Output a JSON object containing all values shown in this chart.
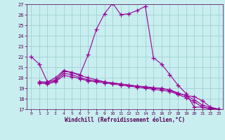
{
  "xlabel": "Windchill (Refroidissement éolien,°C)",
  "bg_color": "#c8eef0",
  "line_color": "#990099",
  "grid_color": "#99cccc",
  "xlim": [
    -0.5,
    23.5
  ],
  "ylim": [
    17,
    27
  ],
  "yticks": [
    17,
    18,
    19,
    20,
    21,
    22,
    23,
    24,
    25,
    26,
    27
  ],
  "xticks": [
    0,
    1,
    2,
    3,
    4,
    5,
    6,
    7,
    8,
    9,
    10,
    11,
    12,
    13,
    14,
    15,
    16,
    17,
    18,
    19,
    20,
    21,
    22,
    23
  ],
  "line1_x": [
    0,
    1,
    2,
    3,
    4,
    5,
    6,
    7,
    8,
    9,
    10,
    11,
    12,
    13,
    14,
    15,
    16,
    17,
    18,
    19,
    20,
    21,
    22,
    23
  ],
  "line1_y": [
    22.0,
    21.3,
    19.6,
    20.0,
    20.7,
    20.5,
    20.3,
    22.2,
    24.6,
    26.1,
    27.1,
    26.0,
    26.1,
    26.4,
    26.8,
    21.9,
    21.3,
    20.3,
    19.3,
    18.5,
    17.2,
    17.2,
    17.0,
    17.0
  ],
  "line2_x": [
    1,
    2,
    3,
    4,
    5,
    6,
    7,
    8,
    9,
    10,
    11,
    12,
    13,
    14,
    15,
    16,
    17,
    18,
    19,
    20,
    21,
    22,
    23
  ],
  "line2_y": [
    19.6,
    19.6,
    19.8,
    20.6,
    20.5,
    20.2,
    20.0,
    19.8,
    19.6,
    19.5,
    19.4,
    19.3,
    19.2,
    19.1,
    19.0,
    19.0,
    18.8,
    18.5,
    18.3,
    18.2,
    17.8,
    17.2,
    17.0
  ],
  "line3_x": [
    1,
    2,
    3,
    4,
    5,
    6,
    7,
    8,
    9,
    10,
    11,
    12,
    13,
    14,
    15,
    16,
    17,
    18,
    19,
    20,
    21,
    22,
    23
  ],
  "line3_y": [
    19.6,
    19.5,
    19.7,
    20.4,
    20.3,
    20.0,
    19.8,
    19.7,
    19.6,
    19.5,
    19.4,
    19.3,
    19.2,
    19.15,
    19.05,
    18.95,
    18.85,
    18.55,
    18.3,
    17.9,
    17.4,
    17.15,
    17.0
  ],
  "line4_x": [
    1,
    2,
    3,
    4,
    5,
    6,
    7,
    8,
    9,
    10,
    11,
    12,
    13,
    14,
    15,
    16,
    17,
    18,
    19,
    20,
    21,
    22,
    23
  ],
  "line4_y": [
    19.5,
    19.4,
    19.6,
    20.2,
    20.1,
    19.9,
    19.7,
    19.6,
    19.5,
    19.4,
    19.3,
    19.2,
    19.1,
    19.0,
    18.9,
    18.8,
    18.7,
    18.4,
    18.1,
    17.7,
    17.2,
    17.05,
    17.0
  ]
}
